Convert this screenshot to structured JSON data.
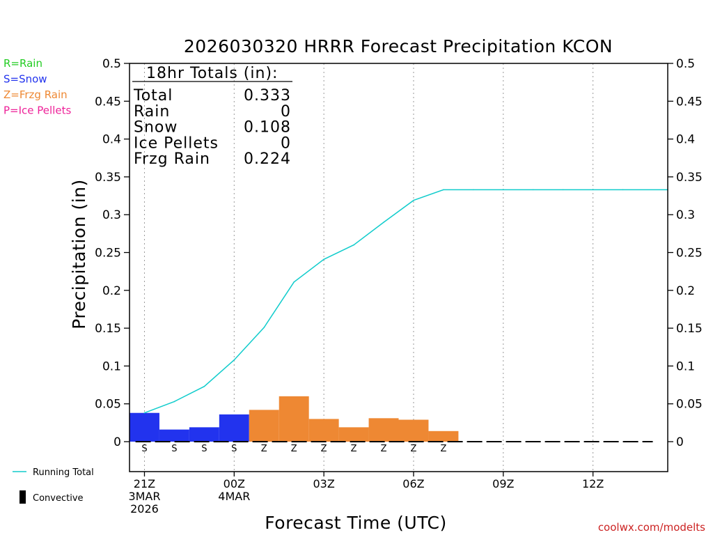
{
  "chart_data": {
    "type": "bar",
    "title": "2026030320 HRRR Forecast Precipitation KCON",
    "xlabel": "Forecast Time (UTC)",
    "ylabel": "Precipitation (in)",
    "ylim": [
      0,
      0.5
    ],
    "y_tick_step": 0.05,
    "y_ticks": [
      "0",
      "0.05",
      "0.1",
      "0.15",
      "0.2",
      "0.25",
      "0.3",
      "0.35",
      "0.4",
      "0.45",
      "0.5"
    ],
    "x_hours": {
      "start": 20.5,
      "end": 38.5
    },
    "x_ticks": [
      {
        "hour": 21,
        "lines": [
          "21Z",
          "3MAR",
          "2026"
        ]
      },
      {
        "hour": 24,
        "lines": [
          "00Z",
          "4MAR"
        ]
      },
      {
        "hour": 27,
        "lines": [
          "03Z"
        ]
      },
      {
        "hour": 30,
        "lines": [
          "06Z"
        ]
      },
      {
        "hour": 33,
        "lines": [
          "09Z"
        ]
      },
      {
        "hour": 36,
        "lines": [
          "12Z"
        ]
      }
    ],
    "ptype_colors": {
      "S": "#2233ee",
      "Z": "#ee8833",
      "R": "#22cc22",
      "P": "#ee2299"
    },
    "bars": [
      {
        "hour": 21,
        "value": 0.038,
        "ptype": "S"
      },
      {
        "hour": 22,
        "value": 0.016,
        "ptype": "S"
      },
      {
        "hour": 23,
        "value": 0.019,
        "ptype": "S"
      },
      {
        "hour": 24,
        "value": 0.036,
        "ptype": "S"
      },
      {
        "hour": 25,
        "value": 0.042,
        "ptype": "Z"
      },
      {
        "hour": 26,
        "value": 0.06,
        "ptype": "Z"
      },
      {
        "hour": 27,
        "value": 0.03,
        "ptype": "Z"
      },
      {
        "hour": 28,
        "value": 0.019,
        "ptype": "Z"
      },
      {
        "hour": 29,
        "value": 0.031,
        "ptype": "Z"
      },
      {
        "hour": 30,
        "value": 0.029,
        "ptype": "Z"
      },
      {
        "hour": 31,
        "value": 0.014,
        "ptype": "Z"
      }
    ],
    "running_total": {
      "name": "Running Total",
      "color": "#11cccc",
      "hours": [
        21,
        22,
        23,
        24,
        25,
        26,
        27,
        28,
        29,
        30,
        31,
        32,
        33,
        34,
        35,
        36,
        37,
        38.5
      ],
      "values": [
        0.038,
        0.053,
        0.073,
        0.108,
        0.151,
        0.211,
        0.241,
        0.26,
        0.29,
        0.319,
        0.333,
        0.333,
        0.333,
        0.333,
        0.333,
        0.333,
        0.333,
        0.333
      ]
    },
    "convective_baseline": {
      "from_hour": 21,
      "to_hour": 38
    }
  },
  "totals": {
    "heading": "18hr Totals (in):",
    "rows": [
      {
        "label": "Total",
        "value": "0.333"
      },
      {
        "label": "Rain",
        "value": "0"
      },
      {
        "label": "Snow",
        "value": "0.108"
      },
      {
        "label": "Ice Pellets",
        "value": "0"
      },
      {
        "label": "Frzg Rain",
        "value": "0.224"
      }
    ]
  },
  "legend_ptypes": [
    {
      "text": "R=Rain",
      "color": "#22cc22"
    },
    {
      "text": "S=Snow",
      "color": "#2233ee"
    },
    {
      "text": "Z=Frzg Rain",
      "color": "#ee8833"
    },
    {
      "text": "P=Ice Pellets",
      "color": "#ee2299"
    }
  ],
  "legend_bottom": {
    "running_total": "Running Total",
    "convective": "Convective"
  },
  "credit": "coolwx.com/modelts"
}
